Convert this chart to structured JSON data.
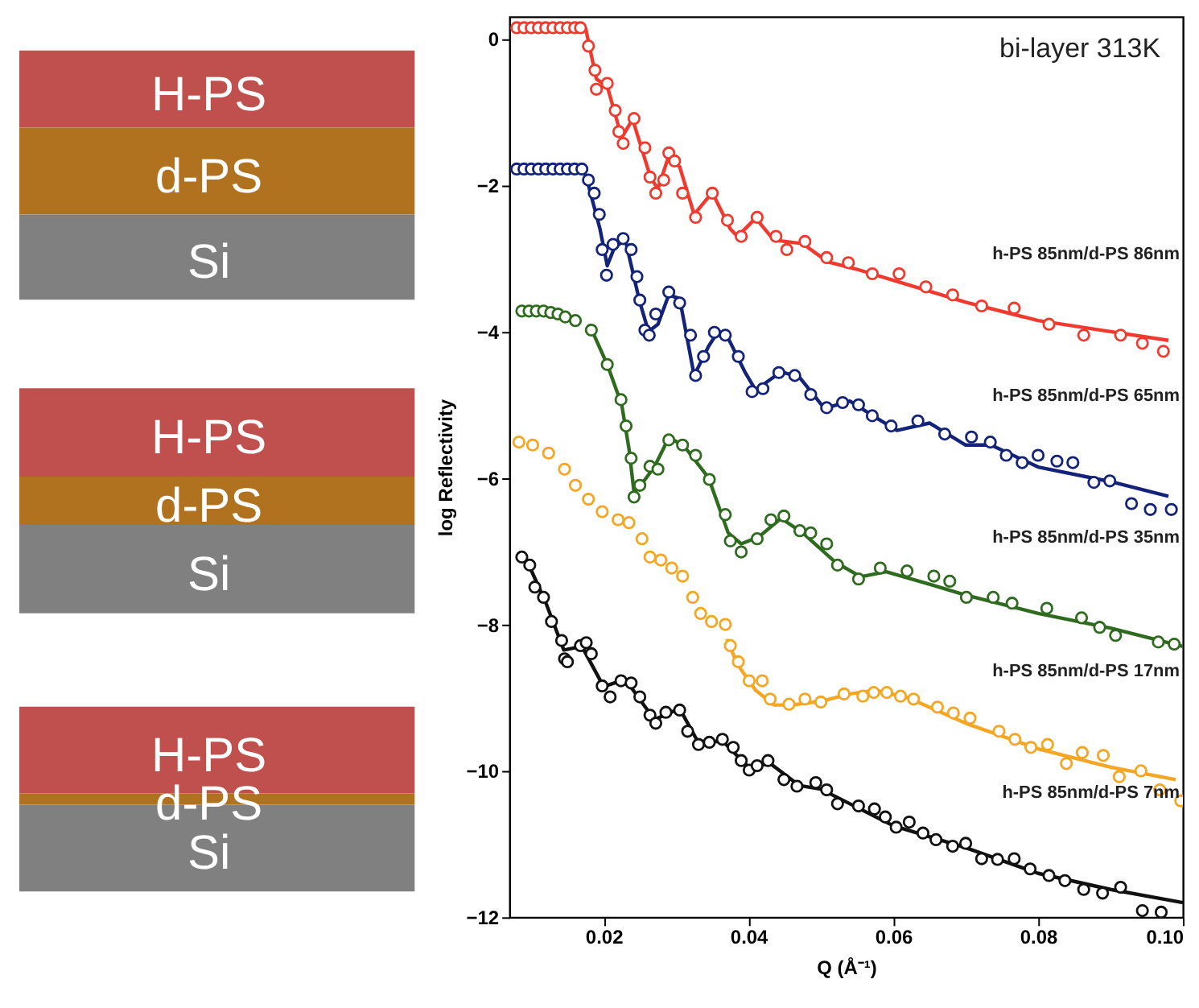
{
  "chart_data": {
    "type": "scatter",
    "xlabel": "Q (Å⁻¹)",
    "ylabel": "log Reflectivity",
    "xlim": [
      0.007,
      0.1
    ],
    "ylim": [
      -12,
      0.3
    ],
    "xticks": [
      0.02,
      0.04,
      0.06,
      0.08,
      {
        "value": 0.1,
        "label": "0.10"
      }
    ],
    "yticks": [
      -12,
      -10,
      -8,
      -6,
      -4,
      -2,
      0
    ],
    "grid": false,
    "annotations": [
      "bi-layer 313K",
      "H-PS",
      "d-PS",
      "Si",
      "H-PS",
      "d-PS",
      "Si",
      "H-PS",
      "d-PS",
      "Si",
      "h-PS 85nm/d-PS 86nm",
      "h-PS 85nm/d-PS 65nm",
      "h-PS 85nm/d-PS 35nm",
      "h-PS 85nm/d-PS 17nm",
      "h-PS 85nm/d-PS 7nm"
    ],
    "series": [
      {
        "type": "scatter",
        "marker": "circle",
        "color": "#f03a2f",
        "x": [
          0.008,
          0.009,
          0.01,
          0.011,
          0.012,
          0.013,
          0.014,
          0.015,
          0.016,
          0.0168,
          0.0179,
          0.0188,
          0.019,
          0.0205,
          0.0216,
          0.0221,
          0.0227,
          0.0242,
          0.0257,
          0.0264,
          0.0272,
          0.0283,
          0.029,
          0.0298,
          0.0309,
          0.0327,
          0.035,
          0.0371,
          0.039,
          0.0412,
          0.0438,
          0.0453,
          0.0478,
          0.0508,
          0.0538,
          0.0571,
          0.0608,
          0.0645,
          0.0682,
          0.0722,
          0.0767,
          0.0815,
          0.0863,
          0.0914,
          0.0944,
          0.0973
        ],
        "values": [
          0.15,
          0.15,
          0.15,
          0.15,
          0.15,
          0.15,
          0.15,
          0.15,
          0.15,
          0.15,
          -0.1,
          -0.43,
          -0.69,
          -0.61,
          -0.98,
          -1.27,
          -1.43,
          -1.09,
          -1.49,
          -1.89,
          -2.11,
          -1.93,
          -1.56,
          -1.67,
          -2.11,
          -2.44,
          -2.11,
          -2.48,
          -2.7,
          -2.44,
          -2.7,
          -2.88,
          -2.77,
          -2.99,
          -3.06,
          -3.21,
          -3.21,
          -3.39,
          -3.5,
          -3.65,
          -3.68,
          -3.9,
          -4.05,
          -4.05,
          -4.16,
          -4.27
        ]
      },
      {
        "type": "line",
        "line_style": "solid",
        "color": "#f03a2f",
        "x": [
          0.0175,
          0.019,
          0.0205,
          0.0225,
          0.024,
          0.0265,
          0.0275,
          0.029,
          0.0305,
          0.0325,
          0.035,
          0.0375,
          0.0385,
          0.041,
          0.0435,
          0.0475,
          0.051,
          0.055,
          0.06,
          0.07,
          0.08,
          0.09,
          0.098
        ],
        "values": [
          0.15,
          -0.55,
          -0.65,
          -1.35,
          -1.1,
          -1.9,
          -2.05,
          -1.6,
          -1.75,
          -2.4,
          -2.1,
          -2.6,
          -2.7,
          -2.45,
          -2.75,
          -2.8,
          -3.05,
          -3.15,
          -3.3,
          -3.6,
          -3.85,
          -4.0,
          -4.12
        ]
      },
      {
        "type": "scatter",
        "marker": "circle",
        "color": "#14237a",
        "x": [
          0.008,
          0.009,
          0.01,
          0.011,
          0.012,
          0.013,
          0.014,
          0.015,
          0.016,
          0.017,
          0.0179,
          0.0187,
          0.0194,
          0.0198,
          0.0204,
          0.0213,
          0.0227,
          0.0238,
          0.0246,
          0.025,
          0.0257,
          0.0263,
          0.0272,
          0.029,
          0.0305,
          0.032,
          0.0327,
          0.0338,
          0.0353,
          0.0368,
          0.0386,
          0.0405,
          0.042,
          0.0442,
          0.0464,
          0.0486,
          0.0508,
          0.053,
          0.0552,
          0.0571,
          0.0597,
          0.0634,
          0.0671,
          0.0708,
          0.0734,
          0.0756,
          0.0778,
          0.08,
          0.0826,
          0.0848,
          0.0877,
          0.0899,
          0.0929,
          0.0955,
          0.0984
        ],
        "values": [
          -1.78,
          -1.78,
          -1.78,
          -1.78,
          -1.78,
          -1.78,
          -1.78,
          -1.78,
          -1.78,
          -1.78,
          -1.93,
          -2.11,
          -2.4,
          -2.88,
          -3.23,
          -2.81,
          -2.73,
          -2.88,
          -3.25,
          -3.57,
          -3.98,
          -4.05,
          -3.76,
          -3.46,
          -3.61,
          -4.05,
          -4.6,
          -4.34,
          -4.01,
          -4.05,
          -4.34,
          -4.82,
          -4.78,
          -4.56,
          -4.6,
          -4.86,
          -5.04,
          -4.97,
          -5.0,
          -5.15,
          -5.29,
          -5.22,
          -5.4,
          -5.44,
          -5.51,
          -5.69,
          -5.79,
          -5.69,
          -5.77,
          -5.79,
          -6.06,
          -6.04,
          -6.35,
          -6.43,
          -6.43
        ]
      },
      {
        "type": "line",
        "line_style": "solid",
        "color": "#14237a",
        "x": [
          0.0175,
          0.0195,
          0.0205,
          0.0215,
          0.023,
          0.025,
          0.0262,
          0.0275,
          0.029,
          0.0305,
          0.0325,
          0.0345,
          0.0358,
          0.037,
          0.0395,
          0.041,
          0.0445,
          0.047,
          0.0505,
          0.054,
          0.058,
          0.0605,
          0.065,
          0.07,
          0.0735,
          0.08,
          0.09,
          0.098
        ],
        "values": [
          -1.85,
          -2.6,
          -3.1,
          -2.85,
          -2.75,
          -3.6,
          -4.0,
          -3.9,
          -3.5,
          -3.55,
          -4.6,
          -4.2,
          -4.0,
          -4.05,
          -4.55,
          -4.8,
          -4.55,
          -4.62,
          -5.05,
          -4.95,
          -5.2,
          -5.35,
          -5.25,
          -5.55,
          -5.55,
          -5.85,
          -6.05,
          -6.25
        ]
      },
      {
        "type": "scatter",
        "marker": "circle",
        "color": "#2e6b1e",
        "x": [
          0.0087,
          0.0097,
          0.0107,
          0.0117,
          0.0127,
          0.0137,
          0.0147,
          0.0161,
          0.0183,
          0.0205,
          0.0224,
          0.0231,
          0.0238,
          0.0242,
          0.025,
          0.0264,
          0.0275,
          0.029,
          0.0309,
          0.0327,
          0.0346,
          0.0368,
          0.0375,
          0.039,
          0.0412,
          0.0431,
          0.0449,
          0.0471,
          0.0486,
          0.0508,
          0.0523,
          0.0552,
          0.0582,
          0.0619,
          0.0656,
          0.0678,
          0.0701,
          0.0738,
          0.0764,
          0.0812,
          0.086,
          0.0885,
          0.0907,
          0.0966,
          0.0988
        ],
        "values": [
          -3.72,
          -3.72,
          -3.72,
          -3.72,
          -3.74,
          -3.76,
          -3.8,
          -3.85,
          -3.98,
          -4.45,
          -4.93,
          -5.29,
          -5.73,
          -6.26,
          -6.1,
          -5.84,
          -5.88,
          -5.48,
          -5.55,
          -5.69,
          -6.02,
          -6.5,
          -6.86,
          -7.01,
          -6.83,
          -6.57,
          -6.52,
          -6.72,
          -6.75,
          -6.9,
          -7.19,
          -7.38,
          -7.23,
          -7.27,
          -7.34,
          -7.41,
          -7.63,
          -7.63,
          -7.71,
          -7.78,
          -7.91,
          -8.04,
          -8.15,
          -8.24,
          -8.27
        ]
      },
      {
        "type": "line",
        "line_style": "solid",
        "color": "#2e6b1e",
        "x": [
          0.018,
          0.0205,
          0.0225,
          0.0235,
          0.0242,
          0.0255,
          0.027,
          0.029,
          0.031,
          0.0345,
          0.0372,
          0.039,
          0.0415,
          0.0445,
          0.0475,
          0.052,
          0.0555,
          0.059,
          0.065,
          0.07,
          0.08,
          0.09,
          0.1
        ],
        "values": [
          -3.9,
          -4.45,
          -5.0,
          -5.6,
          -6.2,
          -6.05,
          -5.85,
          -5.45,
          -5.55,
          -6.0,
          -6.75,
          -6.9,
          -6.8,
          -6.55,
          -6.75,
          -7.15,
          -7.35,
          -7.28,
          -7.45,
          -7.6,
          -7.85,
          -8.05,
          -8.3
        ]
      },
      {
        "type": "scatter",
        "marker": "circle",
        "color": "#f5a623",
        "x": [
          0.0083,
          0.0102,
          0.0124,
          0.0146,
          0.0161,
          0.0179,
          0.0198,
          0.022,
          0.0235,
          0.0253,
          0.0264,
          0.0279,
          0.0294,
          0.0309,
          0.0323,
          0.0334,
          0.0349,
          0.0368,
          0.0375,
          0.0386,
          0.0401,
          0.0419,
          0.043,
          0.0456,
          0.0478,
          0.05,
          0.0532,
          0.0558,
          0.0573,
          0.0591,
          0.061,
          0.0628,
          0.0661,
          0.0683,
          0.0706,
          0.0746,
          0.0768,
          0.079,
          0.0813,
          0.0839,
          0.0861,
          0.089,
          0.0912,
          0.0942,
          0.0968,
          0.0997
        ],
        "values": [
          -5.51,
          -5.55,
          -5.66,
          -5.88,
          -6.1,
          -6.29,
          -6.46,
          -6.57,
          -6.61,
          -6.83,
          -7.08,
          -7.12,
          -7.23,
          -7.34,
          -7.63,
          -7.85,
          -7.96,
          -8.0,
          -8.29,
          -8.51,
          -8.77,
          -8.77,
          -9.02,
          -9.09,
          -9.02,
          -9.06,
          -8.95,
          -8.98,
          -8.93,
          -8.93,
          -8.98,
          -9.02,
          -9.13,
          -9.21,
          -9.28,
          -9.46,
          -9.57,
          -9.68,
          -9.64,
          -9.9,
          -9.75,
          -9.79,
          -10.08,
          -10.0,
          -10.26,
          -10.41
        ]
      },
      {
        "type": "line",
        "line_style": "solid",
        "color": "#f5a623",
        "x": [
          0.037,
          0.0385,
          0.041,
          0.0435,
          0.046,
          0.05,
          0.054,
          0.0575,
          0.062,
          0.07,
          0.08,
          0.09,
          0.099
        ],
        "values": [
          -8.2,
          -8.55,
          -8.9,
          -9.1,
          -9.1,
          -9.05,
          -8.95,
          -8.9,
          -9.0,
          -9.35,
          -9.7,
          -9.95,
          -10.12
        ]
      },
      {
        "type": "scatter",
        "marker": "circle",
        "color": "#111111",
        "x": [
          0.0087,
          0.0098,
          0.0105,
          0.0117,
          0.0128,
          0.0142,
          0.0146,
          0.015,
          0.0168,
          0.0176,
          0.0183,
          0.0198,
          0.0209,
          0.0224,
          0.0238,
          0.025,
          0.0264,
          0.0272,
          0.0286,
          0.0305,
          0.0316,
          0.0331,
          0.0346,
          0.0364,
          0.0379,
          0.039,
          0.0401,
          0.0412,
          0.0427,
          0.0449,
          0.0467,
          0.0493,
          0.0508,
          0.0523,
          0.0552,
          0.0574,
          0.0589,
          0.0604,
          0.0622,
          0.0641,
          0.0659,
          0.0682,
          0.07,
          0.0722,
          0.0744,
          0.0767,
          0.0789,
          0.0815,
          0.0837,
          0.0863,
          0.0889,
          0.0914,
          0.0944,
          0.097
        ],
        "values": [
          -7.08,
          -7.19,
          -7.49,
          -7.63,
          -7.96,
          -8.22,
          -8.47,
          -8.51,
          -8.29,
          -8.25,
          -8.4,
          -8.84,
          -8.99,
          -8.77,
          -8.8,
          -8.99,
          -9.24,
          -9.35,
          -9.2,
          -9.17,
          -9.46,
          -9.64,
          -9.61,
          -9.57,
          -9.68,
          -9.86,
          -9.99,
          -9.93,
          -9.86,
          -10.12,
          -10.21,
          -10.16,
          -10.26,
          -10.45,
          -10.48,
          -10.52,
          -10.63,
          -10.77,
          -10.7,
          -10.85,
          -10.94,
          -11.03,
          -10.99,
          -11.2,
          -11.21,
          -11.2,
          -11.34,
          -11.43,
          -11.5,
          -11.62,
          -11.67,
          -11.59,
          -11.91,
          -11.93
        ]
      },
      {
        "type": "line",
        "line_style": "solid",
        "color": "#111111",
        "x": [
          0.0095,
          0.012,
          0.0145,
          0.017,
          0.02,
          0.023,
          0.027,
          0.0305,
          0.033,
          0.0365,
          0.04,
          0.043,
          0.047,
          0.05,
          0.055,
          0.06,
          0.07,
          0.08,
          0.09,
          0.1
        ],
        "values": [
          -7.15,
          -7.7,
          -8.35,
          -8.3,
          -8.85,
          -8.75,
          -9.3,
          -9.15,
          -9.6,
          -9.6,
          -9.95,
          -9.9,
          -10.2,
          -10.25,
          -10.5,
          -10.75,
          -11.05,
          -11.4,
          -11.62,
          -11.8
        ]
      }
    ]
  }
}
